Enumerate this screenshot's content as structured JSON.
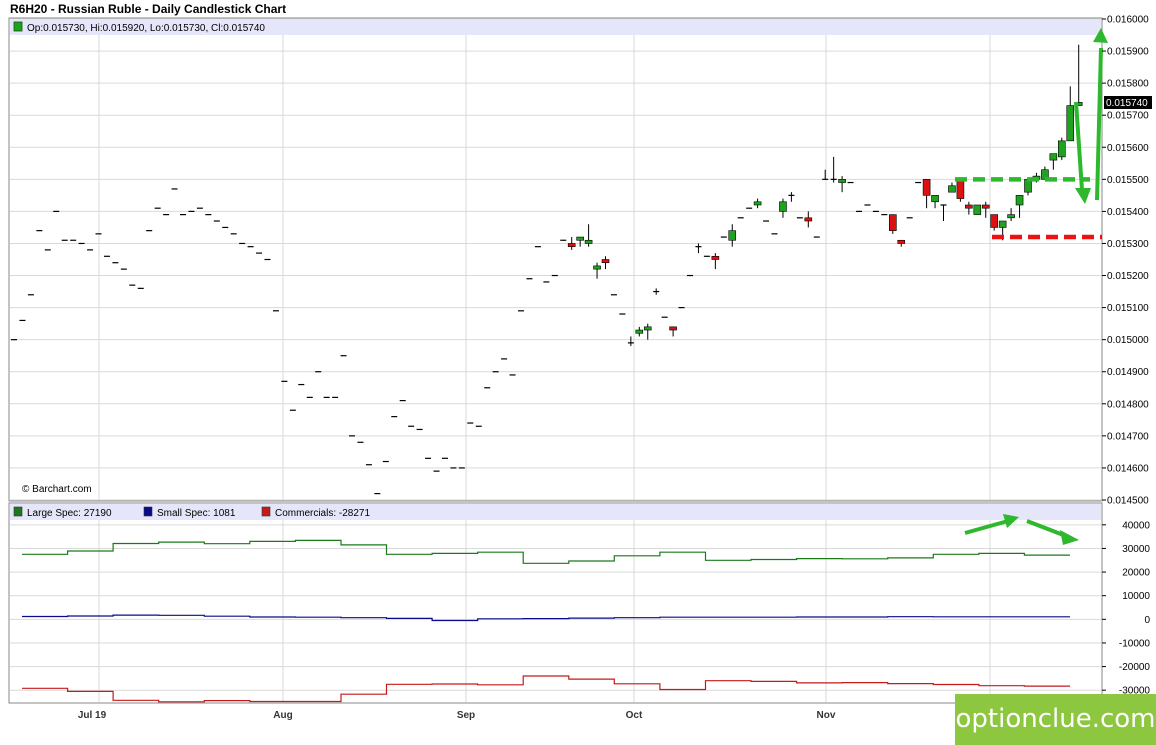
{
  "title": "R6H20 - Russian Ruble - Daily Candlestick Chart",
  "ohlc_legend": "Op:0.015730, Hi:0.015920, Lo:0.015730, Cl:0.015740",
  "last_price_label": "0.015740",
  "credit": "© Barchart.com",
  "watermark": "optionclue.com",
  "colors": {
    "up": "#1fa21f",
    "down": "#dd1111",
    "tick": "#000000",
    "large_spec": "#1a7a1a",
    "small_spec": "#0a0a8c",
    "commercials": "#c41a1a",
    "annotation_green": "#2db82d",
    "annotation_red": "#ee1111",
    "legend_band": "#e6e6fa",
    "grid": "#d9d9d9",
    "watermark": "#8dc63f"
  },
  "chart_data": [
    {
      "type": "candlestick",
      "title": "R6H20 - Russian Ruble - Daily Candlestick Chart",
      "ylim": [
        0.0145,
        0.016
      ],
      "y_ticks": [
        "0.016000",
        "0.015900",
        "0.015800",
        "0.015700",
        "0.015600",
        "0.015500",
        "0.015400",
        "0.015300",
        "0.015200",
        "0.015100",
        "0.015000",
        "0.014900",
        "0.014800",
        "0.014700",
        "0.014600",
        "0.014500"
      ],
      "x_ticks": [
        "Jul 19",
        "Aug",
        "Sep",
        "Oct",
        "Nov"
      ],
      "grid": true,
      "annotations": {
        "resistance_level": 0.0155,
        "support_level": 0.01532,
        "arrows": [
          "up",
          "down"
        ]
      },
      "candles": [
        {
          "o": 0.015,
          "h": 0.015,
          "l": 0.015,
          "c": 0.015
        },
        {
          "o": 0.01506,
          "h": 0.01506,
          "l": 0.01506,
          "c": 0.01506
        },
        {
          "o": 0.01514,
          "h": 0.01514,
          "l": 0.01514,
          "c": 0.01514
        },
        {
          "o": 0.01534,
          "h": 0.01534,
          "l": 0.01534,
          "c": 0.01534
        },
        {
          "o": 0.01528,
          "h": 0.01528,
          "l": 0.01528,
          "c": 0.01528
        },
        {
          "o": 0.0154,
          "h": 0.0154,
          "l": 0.0154,
          "c": 0.0154
        },
        {
          "o": 0.01531,
          "h": 0.01531,
          "l": 0.01531,
          "c": 0.01531
        },
        {
          "o": 0.01531,
          "h": 0.01531,
          "l": 0.01531,
          "c": 0.01531
        },
        {
          "o": 0.0153,
          "h": 0.0153,
          "l": 0.0153,
          "c": 0.0153
        },
        {
          "o": 0.01528,
          "h": 0.01528,
          "l": 0.01528,
          "c": 0.01528
        },
        {
          "o": 0.01533,
          "h": 0.01533,
          "l": 0.01533,
          "c": 0.01533
        },
        {
          "o": 0.01526,
          "h": 0.01526,
          "l": 0.01526,
          "c": 0.01526
        },
        {
          "o": 0.01524,
          "h": 0.01524,
          "l": 0.01524,
          "c": 0.01524
        },
        {
          "o": 0.01522,
          "h": 0.01522,
          "l": 0.01522,
          "c": 0.01522
        },
        {
          "o": 0.01517,
          "h": 0.01517,
          "l": 0.01517,
          "c": 0.01517
        },
        {
          "o": 0.01516,
          "h": 0.01516,
          "l": 0.01516,
          "c": 0.01516
        },
        {
          "o": 0.01534,
          "h": 0.01534,
          "l": 0.01534,
          "c": 0.01534
        },
        {
          "o": 0.01541,
          "h": 0.01541,
          "l": 0.01541,
          "c": 0.01541
        },
        {
          "o": 0.01539,
          "h": 0.01539,
          "l": 0.01539,
          "c": 0.01539
        },
        {
          "o": 0.01547,
          "h": 0.01547,
          "l": 0.01547,
          "c": 0.01547
        },
        {
          "o": 0.01539,
          "h": 0.01539,
          "l": 0.01539,
          "c": 0.01539
        },
        {
          "o": 0.0154,
          "h": 0.0154,
          "l": 0.0154,
          "c": 0.0154
        },
        {
          "o": 0.01541,
          "h": 0.01541,
          "l": 0.01541,
          "c": 0.01541
        },
        {
          "o": 0.01539,
          "h": 0.01539,
          "l": 0.01539,
          "c": 0.01539
        },
        {
          "o": 0.01537,
          "h": 0.01537,
          "l": 0.01537,
          "c": 0.01537
        },
        {
          "o": 0.01535,
          "h": 0.01535,
          "l": 0.01535,
          "c": 0.01535
        },
        {
          "o": 0.01533,
          "h": 0.01533,
          "l": 0.01533,
          "c": 0.01533
        },
        {
          "o": 0.0153,
          "h": 0.0153,
          "l": 0.0153,
          "c": 0.0153
        },
        {
          "o": 0.01529,
          "h": 0.01529,
          "l": 0.01529,
          "c": 0.01529
        },
        {
          "o": 0.01527,
          "h": 0.01527,
          "l": 0.01527,
          "c": 0.01527
        },
        {
          "o": 0.01525,
          "h": 0.01525,
          "l": 0.01525,
          "c": 0.01525
        },
        {
          "o": 0.01509,
          "h": 0.01509,
          "l": 0.01509,
          "c": 0.01509
        },
        {
          "o": 0.01487,
          "h": 0.01487,
          "l": 0.01487,
          "c": 0.01487
        },
        {
          "o": 0.01478,
          "h": 0.01478,
          "l": 0.01478,
          "c": 0.01478
        },
        {
          "o": 0.01486,
          "h": 0.01486,
          "l": 0.01486,
          "c": 0.01486
        },
        {
          "o": 0.01482,
          "h": 0.01482,
          "l": 0.01482,
          "c": 0.01482
        },
        {
          "o": 0.0149,
          "h": 0.0149,
          "l": 0.0149,
          "c": 0.0149
        },
        {
          "o": 0.01482,
          "h": 0.01482,
          "l": 0.01482,
          "c": 0.01482
        },
        {
          "o": 0.01482,
          "h": 0.01482,
          "l": 0.01482,
          "c": 0.01482
        },
        {
          "o": 0.01495,
          "h": 0.01495,
          "l": 0.01495,
          "c": 0.01495
        },
        {
          "o": 0.0147,
          "h": 0.0147,
          "l": 0.0147,
          "c": 0.0147
        },
        {
          "o": 0.01468,
          "h": 0.01468,
          "l": 0.01468,
          "c": 0.01468
        },
        {
          "o": 0.01461,
          "h": 0.01461,
          "l": 0.01461,
          "c": 0.01461
        },
        {
          "o": 0.01452,
          "h": 0.01452,
          "l": 0.01452,
          "c": 0.01452
        },
        {
          "o": 0.01462,
          "h": 0.01462,
          "l": 0.01462,
          "c": 0.01462
        },
        {
          "o": 0.01476,
          "h": 0.01476,
          "l": 0.01476,
          "c": 0.01476
        },
        {
          "o": 0.01481,
          "h": 0.01481,
          "l": 0.01481,
          "c": 0.01481
        },
        {
          "o": 0.01473,
          "h": 0.01473,
          "l": 0.01473,
          "c": 0.01473
        },
        {
          "o": 0.01472,
          "h": 0.01472,
          "l": 0.01472,
          "c": 0.01472
        },
        {
          "o": 0.01463,
          "h": 0.01463,
          "l": 0.01463,
          "c": 0.01463
        },
        {
          "o": 0.01459,
          "h": 0.01459,
          "l": 0.01459,
          "c": 0.01459
        },
        {
          "o": 0.01463,
          "h": 0.01463,
          "l": 0.01463,
          "c": 0.01463
        },
        {
          "o": 0.0146,
          "h": 0.0146,
          "l": 0.0146,
          "c": 0.0146
        },
        {
          "o": 0.0146,
          "h": 0.0146,
          "l": 0.0146,
          "c": 0.0146
        },
        {
          "o": 0.01474,
          "h": 0.01474,
          "l": 0.01474,
          "c": 0.01474
        },
        {
          "o": 0.01473,
          "h": 0.01473,
          "l": 0.01473,
          "c": 0.01473
        },
        {
          "o": 0.01485,
          "h": 0.01485,
          "l": 0.01485,
          "c": 0.01485
        },
        {
          "o": 0.0149,
          "h": 0.0149,
          "l": 0.0149,
          "c": 0.0149
        },
        {
          "o": 0.01494,
          "h": 0.01494,
          "l": 0.01494,
          "c": 0.01494
        },
        {
          "o": 0.01489,
          "h": 0.01489,
          "l": 0.01489,
          "c": 0.01489
        },
        {
          "o": 0.01509,
          "h": 0.01509,
          "l": 0.01509,
          "c": 0.01509
        },
        {
          "o": 0.01519,
          "h": 0.01519,
          "l": 0.01519,
          "c": 0.01519
        },
        {
          "o": 0.01529,
          "h": 0.01529,
          "l": 0.01529,
          "c": 0.01529
        },
        {
          "o": 0.01518,
          "h": 0.01518,
          "l": 0.01518,
          "c": 0.01518
        },
        {
          "o": 0.0152,
          "h": 0.0152,
          "l": 0.0152,
          "c": 0.0152
        },
        {
          "o": 0.01531,
          "h": 0.01531,
          "l": 0.01531,
          "c": 0.01531
        },
        {
          "o": 0.0153,
          "h": 0.01532,
          "l": 0.01528,
          "c": 0.01529
        },
        {
          "o": 0.01531,
          "h": 0.01532,
          "l": 0.01529,
          "c": 0.01532
        },
        {
          "o": 0.0153,
          "h": 0.01536,
          "l": 0.01529,
          "c": 0.01531
        },
        {
          "o": 0.01522,
          "h": 0.01524,
          "l": 0.01519,
          "c": 0.01523
        },
        {
          "o": 0.01525,
          "h": 0.01526,
          "l": 0.01522,
          "c": 0.01524
        },
        {
          "o": 0.01514,
          "h": 0.01514,
          "l": 0.01514,
          "c": 0.01514
        },
        {
          "o": 0.01508,
          "h": 0.01508,
          "l": 0.01508,
          "c": 0.01508
        },
        {
          "o": 0.01499,
          "h": 0.01501,
          "l": 0.01498,
          "c": 0.01499
        },
        {
          "o": 0.01502,
          "h": 0.01504,
          "l": 0.01501,
          "c": 0.01503
        },
        {
          "o": 0.01503,
          "h": 0.01505,
          "l": 0.015,
          "c": 0.01504
        },
        {
          "o": 0.01515,
          "h": 0.01516,
          "l": 0.01514,
          "c": 0.01515
        },
        {
          "o": 0.01507,
          "h": 0.01507,
          "l": 0.01507,
          "c": 0.01507
        },
        {
          "o": 0.01504,
          "h": 0.01504,
          "l": 0.01501,
          "c": 0.01503
        },
        {
          "o": 0.0151,
          "h": 0.0151,
          "l": 0.0151,
          "c": 0.0151
        },
        {
          "o": 0.0152,
          "h": 0.0152,
          "l": 0.0152,
          "c": 0.0152
        },
        {
          "o": 0.01529,
          "h": 0.0153,
          "l": 0.01527,
          "c": 0.01529
        },
        {
          "o": 0.01526,
          "h": 0.01526,
          "l": 0.01526,
          "c": 0.01526
        },
        {
          "o": 0.01526,
          "h": 0.01527,
          "l": 0.01522,
          "c": 0.01525
        },
        {
          "o": 0.01532,
          "h": 0.01532,
          "l": 0.01532,
          "c": 0.01532
        },
        {
          "o": 0.01531,
          "h": 0.01536,
          "l": 0.01529,
          "c": 0.01534
        },
        {
          "o": 0.01538,
          "h": 0.01538,
          "l": 0.01538,
          "c": 0.01538
        },
        {
          "o": 0.01541,
          "h": 0.01541,
          "l": 0.01541,
          "c": 0.01541
        },
        {
          "o": 0.01542,
          "h": 0.01544,
          "l": 0.01541,
          "c": 0.01543
        },
        {
          "o": 0.01537,
          "h": 0.01537,
          "l": 0.01537,
          "c": 0.01537
        },
        {
          "o": 0.01533,
          "h": 0.01533,
          "l": 0.01533,
          "c": 0.01533
        },
        {
          "o": 0.0154,
          "h": 0.01544,
          "l": 0.01538,
          "c": 0.01543
        },
        {
          "o": 0.01545,
          "h": 0.01546,
          "l": 0.01543,
          "c": 0.01545
        },
        {
          "o": 0.01538,
          "h": 0.01538,
          "l": 0.01538,
          "c": 0.01538
        },
        {
          "o": 0.01538,
          "h": 0.0154,
          "l": 0.01535,
          "c": 0.01537
        },
        {
          "o": 0.01532,
          "h": 0.01532,
          "l": 0.01532,
          "c": 0.01532
        },
        {
          "o": 0.0155,
          "h": 0.01553,
          "l": 0.0155,
          "c": 0.0155
        },
        {
          "o": 0.0155,
          "h": 0.01557,
          "l": 0.01549,
          "c": 0.0155
        },
        {
          "o": 0.01549,
          "h": 0.01551,
          "l": 0.01546,
          "c": 0.0155
        },
        {
          "o": 0.01549,
          "h": 0.01549,
          "l": 0.01549,
          "c": 0.01549
        },
        {
          "o": 0.0154,
          "h": 0.0154,
          "l": 0.0154,
          "c": 0.0154
        },
        {
          "o": 0.01542,
          "h": 0.01542,
          "l": 0.01542,
          "c": 0.01542
        },
        {
          "o": 0.0154,
          "h": 0.0154,
          "l": 0.0154,
          "c": 0.0154
        },
        {
          "o": 0.01539,
          "h": 0.01539,
          "l": 0.01539,
          "c": 0.01539
        },
        {
          "o": 0.01539,
          "h": 0.01539,
          "l": 0.01533,
          "c": 0.01534
        },
        {
          "o": 0.01531,
          "h": 0.01531,
          "l": 0.01529,
          "c": 0.0153
        },
        {
          "o": 0.01538,
          "h": 0.01538,
          "l": 0.01538,
          "c": 0.01538
        },
        {
          "o": 0.01549,
          "h": 0.01549,
          "l": 0.01549,
          "c": 0.01549
        },
        {
          "o": 0.0155,
          "h": 0.0155,
          "l": 0.01541,
          "c": 0.01545
        },
        {
          "o": 0.01543,
          "h": 0.01545,
          "l": 0.01541,
          "c": 0.01545
        },
        {
          "o": 0.01542,
          "h": 0.01542,
          "l": 0.01537,
          "c": 0.01542
        },
        {
          "o": 0.01546,
          "h": 0.01549,
          "l": 0.01546,
          "c": 0.01548
        },
        {
          "o": 0.0155,
          "h": 0.0155,
          "l": 0.01543,
          "c": 0.01544
        },
        {
          "o": 0.01542,
          "h": 0.01543,
          "l": 0.01539,
          "c": 0.01541
        },
        {
          "o": 0.01539,
          "h": 0.01542,
          "l": 0.01539,
          "c": 0.01542
        },
        {
          "o": 0.01542,
          "h": 0.01543,
          "l": 0.01538,
          "c": 0.01541
        },
        {
          "o": 0.01539,
          "h": 0.01539,
          "l": 0.01534,
          "c": 0.01535
        },
        {
          "o": 0.01535,
          "h": 0.01537,
          "l": 0.01531,
          "c": 0.01537
        },
        {
          "o": 0.01538,
          "h": 0.01541,
          "l": 0.01537,
          "c": 0.01539
        },
        {
          "o": 0.01542,
          "h": 0.01545,
          "l": 0.01538,
          "c": 0.01545
        },
        {
          "o": 0.01546,
          "h": 0.0155,
          "l": 0.01545,
          "c": 0.0155
        },
        {
          "o": 0.0155,
          "h": 0.01552,
          "l": 0.01549,
          "c": 0.01551
        },
        {
          "o": 0.0155,
          "h": 0.01554,
          "l": 0.0155,
          "c": 0.01553
        },
        {
          "o": 0.01556,
          "h": 0.01557,
          "l": 0.01553,
          "c": 0.01558
        },
        {
          "o": 0.01557,
          "h": 0.01563,
          "l": 0.01556,
          "c": 0.01562
        },
        {
          "o": 0.01562,
          "h": 0.01579,
          "l": 0.01562,
          "c": 0.01573
        },
        {
          "o": 0.01573,
          "h": 0.01592,
          "l": 0.01573,
          "c": 0.01574
        }
      ]
    },
    {
      "type": "line",
      "title": "",
      "ylim": [
        -35000,
        45000
      ],
      "y_ticks": [
        "40000",
        "30000",
        "20000",
        "10000",
        "0",
        "-10000",
        "-20000",
        "-30000"
      ],
      "legend": [
        "Large Spec: 27190",
        "Small Spec: 1081",
        "Commercials: -28271"
      ],
      "series": [
        {
          "name": "Large Spec",
          "step": true,
          "values": [
            27500,
            28900,
            32100,
            32700,
            32000,
            33000,
            33400,
            31500,
            27500,
            27900,
            28400,
            23700,
            24700,
            26900,
            28400,
            25000,
            25300,
            25700,
            25600,
            26000,
            27500,
            27900,
            27190
          ]
        },
        {
          "name": "Small Spec",
          "step": true,
          "values": [
            1200,
            1400,
            1800,
            1700,
            1300,
            1000,
            900,
            700,
            400,
            -500,
            200,
            300,
            500,
            700,
            900,
            900,
            900,
            1000,
            1000,
            1100,
            1081,
            1081,
            1081
          ]
        },
        {
          "name": "Commercials",
          "step": true,
          "values": [
            -29200,
            -30500,
            -34300,
            -34900,
            -34400,
            -34800,
            -34800,
            -31700,
            -27500,
            -27400,
            -27700,
            -24000,
            -25300,
            -27300,
            -29700,
            -26000,
            -26300,
            -26900,
            -26800,
            -27200,
            -27600,
            -28100,
            -28271
          ]
        }
      ]
    }
  ]
}
